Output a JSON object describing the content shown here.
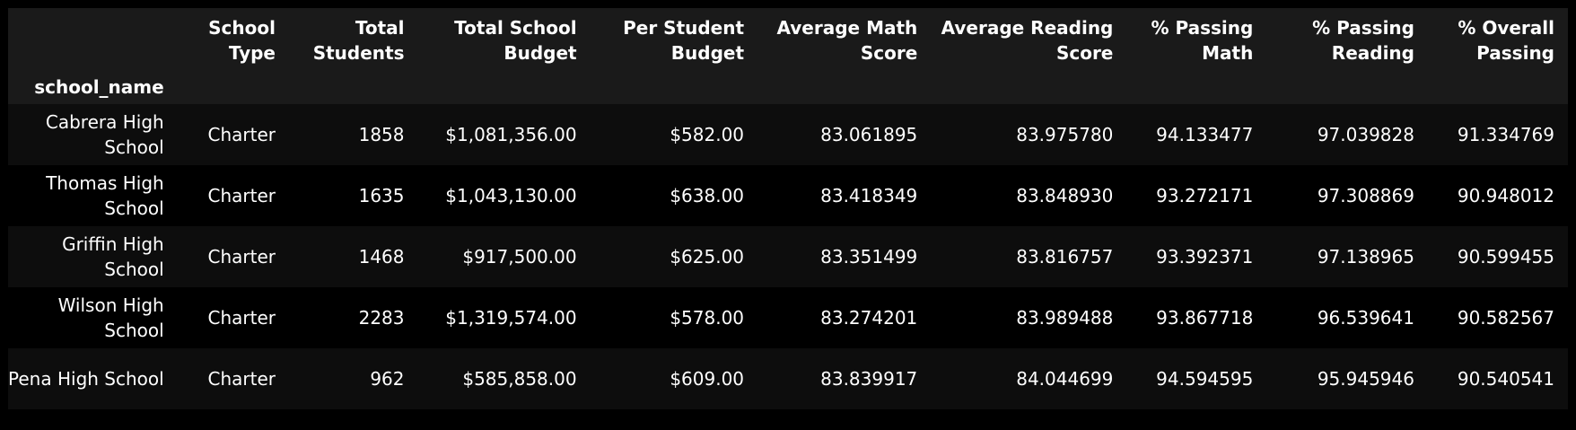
{
  "table": {
    "index_name": "school_name",
    "columns": [
      "School Type",
      "Total Students",
      "Total School Budget",
      "Per Student Budget",
      "Average Math Score",
      "Average Reading Score",
      "% Passing Math",
      "% Passing Reading",
      "% Overall Passing"
    ],
    "rows": [
      {
        "school_name": "Cabrera High School",
        "cells": [
          "Charter",
          "1858",
          "$1,081,356.00",
          "$582.00",
          "83.061895",
          "83.975780",
          "94.133477",
          "97.039828",
          "91.334769"
        ]
      },
      {
        "school_name": "Thomas High School",
        "cells": [
          "Charter",
          "1635",
          "$1,043,130.00",
          "$638.00",
          "83.418349",
          "83.848930",
          "93.272171",
          "97.308869",
          "90.948012"
        ]
      },
      {
        "school_name": "Griffin High School",
        "cells": [
          "Charter",
          "1468",
          "$917,500.00",
          "$625.00",
          "83.351499",
          "83.816757",
          "93.392371",
          "97.138965",
          "90.599455"
        ]
      },
      {
        "school_name": "Wilson High School",
        "cells": [
          "Charter",
          "2283",
          "$1,319,574.00",
          "$578.00",
          "83.274201",
          "83.989488",
          "93.867718",
          "96.539641",
          "90.582567"
        ]
      },
      {
        "school_name": "Pena High School",
        "cells": [
          "Charter",
          "962",
          "$585,858.00",
          "$609.00",
          "83.839917",
          "84.044699",
          "94.594595",
          "95.945946",
          "90.540541"
        ]
      }
    ]
  }
}
